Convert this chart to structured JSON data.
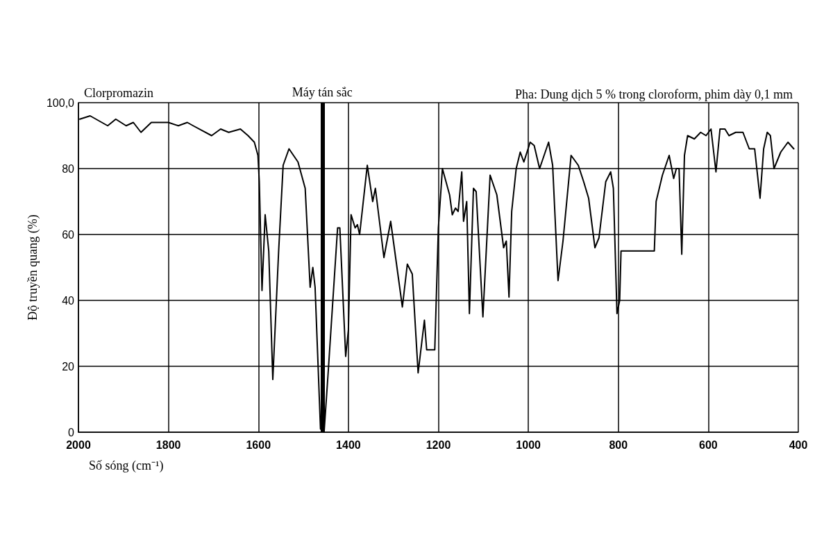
{
  "chart_data": {
    "type": "line",
    "title": "Clorpromazin",
    "xlabel": "Số sóng (cm⁻¹)",
    "ylabel": "Độ truyền quang (%)",
    "annotations": [
      "Pha: Dung dịch 5 % trong cloroform, phim dày 0,1 mm"
    ],
    "x": [
      1997,
      1974,
      1935,
      1917,
      1894,
      1878,
      1861,
      1838,
      1800,
      1778,
      1758,
      1745,
      1704,
      1684,
      1666,
      1640,
      1623,
      1609,
      1601,
      1598,
      1592,
      1585,
      1577,
      1568,
      1555,
      1545,
      1532,
      1512,
      1496,
      1485,
      1479,
      1474,
      1462,
      1454,
      1445,
      1424,
      1419,
      1406,
      1400,
      1394,
      1385,
      1380,
      1375,
      1358,
      1346,
      1340,
      1321,
      1306,
      1280,
      1269,
      1258,
      1245,
      1231,
      1226,
      1208,
      1200,
      1191,
      1185,
      1175,
      1169,
      1162,
      1156,
      1148,
      1144,
      1137,
      1131,
      1122,
      1116,
      1101,
      1085,
      1070,
      1055,
      1049,
      1043,
      1037,
      1027,
      1018,
      1010,
      996,
      987,
      975,
      955,
      946,
      934,
      923,
      905,
      889,
      877,
      866,
      852,
      843,
      828,
      817,
      811,
      803,
      797,
      794,
      720,
      716,
      702,
      687,
      677,
      671,
      665,
      659,
      653,
      646,
      631,
      617,
      605,
      594,
      583,
      574,
      563,
      554,
      539,
      523,
      509,
      497,
      485,
      477,
      469,
      462,
      454,
      439,
      423,
      410
    ],
    "values": [
      95,
      96,
      93,
      95,
      93,
      94,
      91,
      94,
      94,
      93,
      94,
      93,
      90,
      92,
      91,
      92,
      90,
      88,
      84,
      76,
      43,
      66,
      55,
      16,
      55,
      81,
      86,
      82,
      74,
      44,
      50,
      44,
      1,
      0,
      18,
      62,
      62,
      23,
      31,
      66,
      62,
      63,
      60,
      81,
      70,
      74,
      53,
      64,
      38,
      51,
      48,
      18,
      34,
      25,
      25,
      62,
      80,
      77,
      72,
      66,
      68,
      67,
      79,
      64,
      70,
      36,
      74,
      73,
      35,
      78,
      72,
      56,
      58,
      41,
      67,
      80,
      85,
      82,
      88,
      87,
      80,
      88,
      81,
      46,
      58,
      84,
      81,
      76,
      71,
      56,
      59,
      76,
      79,
      74,
      36,
      40,
      55,
      55,
      70,
      78,
      84,
      77,
      80,
      80,
      54,
      84,
      90,
      89,
      91,
      90,
      92,
      79,
      92,
      92,
      90,
      91,
      91,
      86,
      86,
      71,
      86,
      91,
      90,
      80,
      85,
      88,
      86
    ],
    "color": "#000000",
    "xlim": [
      2000,
      400
    ],
    "xticks": [
      2000,
      1800,
      1600,
      1400,
      1200,
      1000,
      800,
      600,
      400
    ],
    "ylim": [
      0,
      100
    ],
    "yticks": [
      0,
      20,
      40,
      60,
      80,
      {
        "value": 100,
        "label": "100,0"
      }
    ],
    "grid": true,
    "marker": "none",
    "line_style": "solid",
    "ref_lines": [
      {
        "axis": "x",
        "value": 1458,
        "label": "Máy tán sắc",
        "color": "#000000"
      }
    ]
  }
}
